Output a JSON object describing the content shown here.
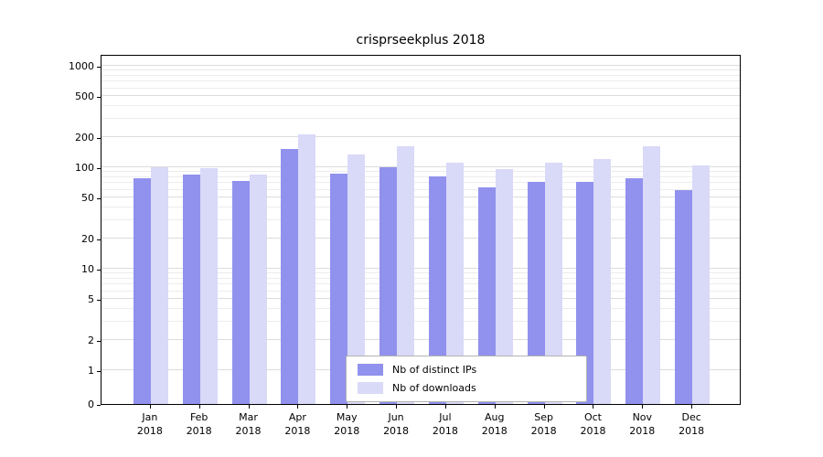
{
  "chart_data": {
    "type": "bar",
    "title": "crisprseekplus 2018",
    "categories": [
      "Jan",
      "Feb",
      "Mar",
      "Apr",
      "May",
      "Jun",
      "Jul",
      "Aug",
      "Sep",
      "Oct",
      "Nov",
      "Dec"
    ],
    "year": "2018",
    "series": [
      {
        "name": "Nb of distinct IPs",
        "color": "#9191ee",
        "values": [
          78,
          85,
          73,
          150,
          87,
          100,
          82,
          63,
          72,
          72,
          78,
          60
        ]
      },
      {
        "name": "Nb of downloads",
        "color": "#d9d9f8",
        "values": [
          100,
          98,
          85,
          210,
          135,
          160,
          112,
          95,
          112,
          120,
          162,
          104
        ]
      }
    ],
    "yscale": "symlog",
    "yticks": [
      1000,
      500,
      200,
      100,
      50,
      20,
      10,
      5,
      2,
      1,
      0
    ],
    "ylim": [
      0,
      1300
    ],
    "grid": true,
    "legend": {
      "position": "bottom-center",
      "entries": [
        "Nb of distinct IPs",
        "Nb of downloads"
      ]
    }
  }
}
